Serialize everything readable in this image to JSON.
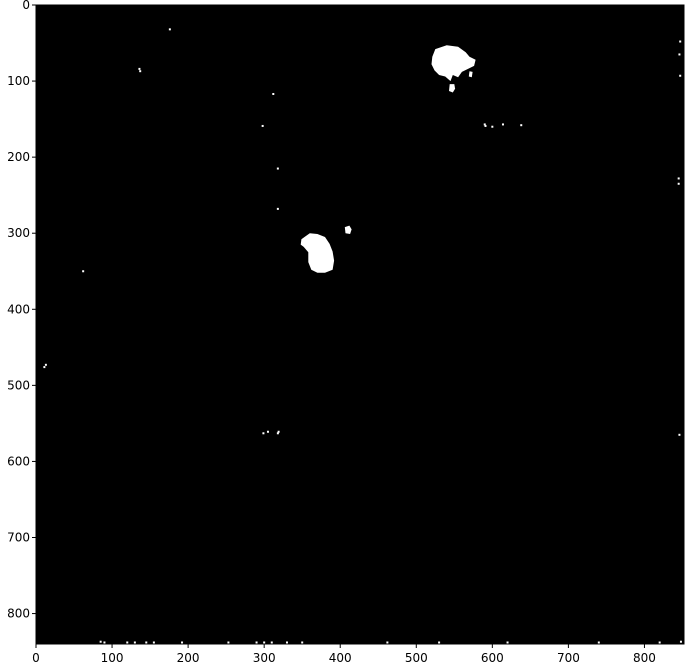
{
  "image_plot": {
    "colors": {
      "background": "#000000",
      "foreground": "#ffffff",
      "frame": "#000000"
    },
    "x_axis": {
      "range": [
        0,
        852
      ],
      "ticks": [
        0,
        100,
        200,
        300,
        400,
        500,
        600,
        700,
        800
      ]
    },
    "y_axis": {
      "range": [
        0,
        840
      ],
      "inverted": true,
      "ticks": [
        0,
        100,
        200,
        300,
        400,
        500,
        600,
        700,
        800
      ]
    },
    "blobs": [
      {
        "name": "large-blob-top",
        "points": [
          [
            525,
            58
          ],
          [
            540,
            53
          ],
          [
            555,
            55
          ],
          [
            565,
            62
          ],
          [
            570,
            68
          ],
          [
            578,
            72
          ],
          [
            576,
            80
          ],
          [
            568,
            84
          ],
          [
            560,
            88
          ],
          [
            555,
            95
          ],
          [
            548,
            92
          ],
          [
            545,
            100
          ],
          [
            538,
            94
          ],
          [
            530,
            92
          ],
          [
            524,
            86
          ],
          [
            520,
            78
          ],
          [
            521,
            68
          ]
        ]
      },
      {
        "name": "blob-top-dot-1",
        "points": [
          [
            544,
            104
          ],
          [
            550,
            104
          ],
          [
            551,
            110
          ],
          [
            548,
            115
          ],
          [
            543,
            113
          ]
        ]
      },
      {
        "name": "blob-top-dot-2",
        "points": [
          [
            570,
            87
          ],
          [
            574,
            88
          ],
          [
            573,
            95
          ],
          [
            569,
            94
          ]
        ]
      },
      {
        "name": "blob-center",
        "points": [
          [
            353,
            305
          ],
          [
            360,
            300
          ],
          [
            370,
            301
          ],
          [
            380,
            305
          ],
          [
            386,
            314
          ],
          [
            390,
            324
          ],
          [
            392,
            336
          ],
          [
            390,
            348
          ],
          [
            380,
            352
          ],
          [
            370,
            352
          ],
          [
            362,
            348
          ],
          [
            358,
            338
          ],
          [
            358,
            325
          ],
          [
            352,
            318
          ],
          [
            348,
            315
          ],
          [
            349,
            308
          ]
        ]
      },
      {
        "name": "blob-center-dot",
        "points": [
          [
            406,
            292
          ],
          [
            412,
            290
          ],
          [
            415,
            295
          ],
          [
            413,
            301
          ],
          [
            407,
            300
          ]
        ]
      }
    ],
    "specks": [
      [
        176,
        32
      ],
      [
        136,
        84
      ],
      [
        137,
        87
      ],
      [
        312,
        117
      ],
      [
        298,
        159
      ],
      [
        614,
        157
      ],
      [
        600,
        160
      ],
      [
        590,
        157
      ],
      [
        638,
        158
      ],
      [
        591,
        159
      ],
      [
        318,
        215
      ],
      [
        318,
        268
      ],
      [
        845,
        235
      ],
      [
        845,
        228
      ],
      [
        846,
        65
      ],
      [
        847,
        48
      ],
      [
        847,
        93
      ],
      [
        62,
        350
      ],
      [
        13,
        473
      ],
      [
        11,
        476
      ],
      [
        319,
        561
      ],
      [
        318,
        563
      ],
      [
        299,
        563
      ],
      [
        305,
        561
      ],
      [
        846,
        565
      ],
      [
        90,
        838
      ],
      [
        85,
        837
      ],
      [
        120,
        838
      ],
      [
        130,
        838
      ],
      [
        145,
        838
      ],
      [
        155,
        838
      ],
      [
        192,
        838
      ],
      [
        253,
        838
      ],
      [
        290,
        838
      ],
      [
        300,
        838
      ],
      [
        310,
        838
      ],
      [
        330,
        838
      ],
      [
        350,
        838
      ],
      [
        462,
        838
      ],
      [
        530,
        838
      ],
      [
        620,
        838
      ],
      [
        740,
        838
      ],
      [
        820,
        838
      ],
      [
        848,
        837
      ]
    ]
  }
}
